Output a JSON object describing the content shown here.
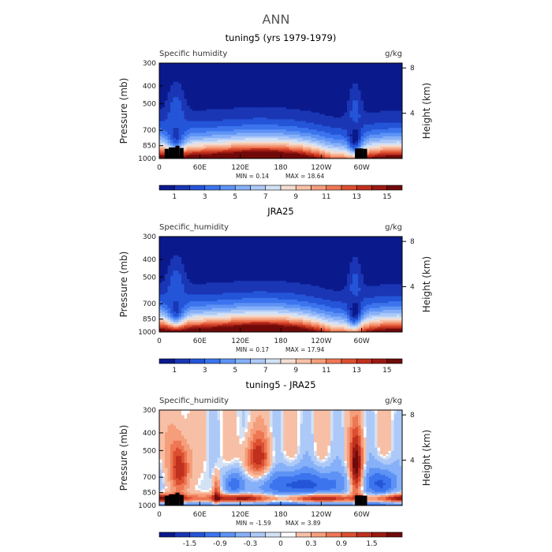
{
  "figure_title": "ANN",
  "chart_data": [
    {
      "type": "heatmap",
      "title": "tuning5 (yrs 1979-1979)",
      "variable_label": "Specific humidity",
      "units": "g/kg",
      "ylabel": "Pressure (mb)",
      "ylabel_right": "Height (km)",
      "y_ticks": [
        "300",
        "400",
        "500",
        "700",
        "850",
        "1000"
      ],
      "y_right_ticks": [
        "8",
        "4"
      ],
      "x_ticks": [
        "0",
        "60E",
        "120E",
        "180",
        "120W",
        "60W"
      ],
      "min_text": "MIN =    0.14",
      "max_text": "MAX =   18.64",
      "min": 0.14,
      "max": 18.64,
      "colorbar_labels": [
        "1",
        "3",
        "5",
        "7",
        "9",
        "11",
        "13",
        "15"
      ],
      "field_kind": "mean",
      "has_terrain": true
    },
    {
      "type": "heatmap",
      "title": "JRA25",
      "variable_label": "Specific_humidity",
      "units": "g/kg",
      "ylabel": "Pressure (mb)",
      "ylabel_right": "Height (km)",
      "y_ticks": [
        "300",
        "400",
        "500",
        "700",
        "850",
        "1000"
      ],
      "y_right_ticks": [
        "8",
        "4"
      ],
      "x_ticks": [
        "0",
        "60E",
        "120E",
        "180",
        "120W",
        "60W"
      ],
      "min_text": "MIN =    0.17",
      "max_text": "MAX =   17.94",
      "min": 0.17,
      "max": 17.94,
      "colorbar_labels": [
        "1",
        "3",
        "5",
        "7",
        "9",
        "11",
        "13",
        "15"
      ],
      "field_kind": "mean",
      "has_terrain": false
    },
    {
      "type": "heatmap",
      "title": "tuning5 - JRA25",
      "variable_label": "Specific_humidity",
      "units": "g/kg",
      "ylabel": "Pressure (mb)",
      "ylabel_right": "Height (km)",
      "y_ticks": [
        "300",
        "400",
        "500",
        "700",
        "850",
        "1000"
      ],
      "y_right_ticks": [
        "8",
        "4"
      ],
      "x_ticks": [
        "0",
        "60E",
        "120E",
        "180",
        "120W",
        "60W"
      ],
      "min_text": "MIN =   -1.59",
      "max_text": "MAX =    3.89",
      "min": -1.59,
      "max": 3.89,
      "colorbar_labels": [
        "-1.5",
        "-0.9",
        "-0.3",
        "0",
        "0.3",
        "0.9",
        "1.5"
      ],
      "field_kind": "diff",
      "has_terrain": true
    }
  ],
  "colors": {
    "mean_palette": [
      "#0a1a8c",
      "#1a36b5",
      "#2455d8",
      "#3c74ee",
      "#5e93f5",
      "#86b0f8",
      "#adc9f8",
      "#d3e1f5",
      "#f4ddd0",
      "#f7c0a6",
      "#f59e7b",
      "#ee7754",
      "#dc4f31",
      "#c0301e",
      "#9a1a12",
      "#700a0a"
    ],
    "diff_palette": [
      "#0a1a8c",
      "#1a36b5",
      "#2455d8",
      "#3c74ee",
      "#5e93f5",
      "#86b0f8",
      "#adc9f8",
      "#d3e1f5",
      "#ffffff",
      "#f7c0a6",
      "#f59e7b",
      "#ee7754",
      "#dc4f31",
      "#c0301e",
      "#9a1a12",
      "#700a0a"
    ],
    "terrain": "#000000"
  }
}
